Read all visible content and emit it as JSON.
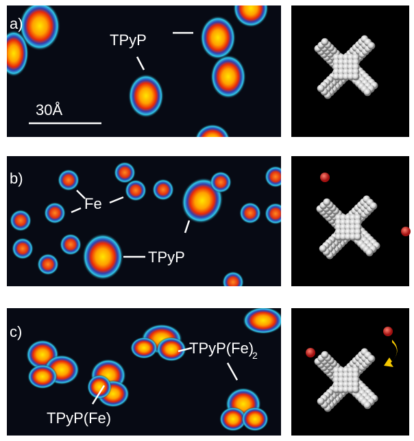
{
  "panels": [
    {
      "label": "a)",
      "annotations": [
        "TPyP"
      ],
      "scale_bar": "30Å"
    },
    {
      "label": "b)",
      "annotations": [
        "Fe",
        "TPyP"
      ]
    },
    {
      "label": "c)",
      "annotations": [
        "TPyP(Fe)",
        {
          "text": "TPyP(Fe)",
          "subscript": "2"
        }
      ]
    }
  ]
}
